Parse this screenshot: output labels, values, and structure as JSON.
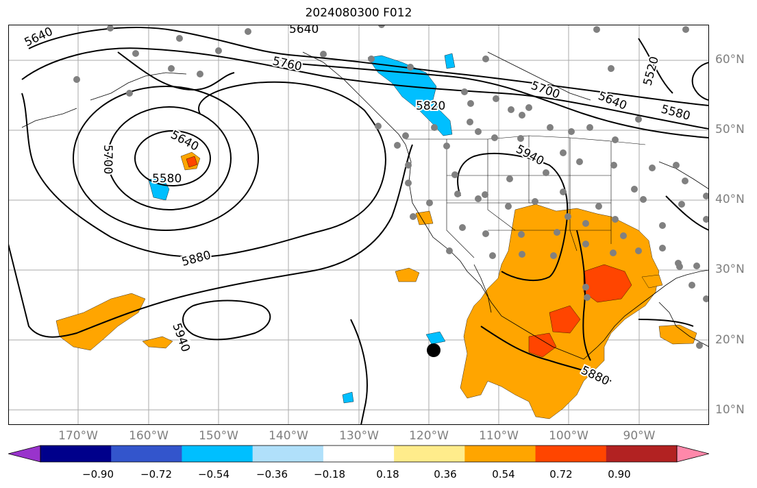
{
  "title": "2024080300 F012",
  "map": {
    "extent": {
      "lon": [
        -180,
        -80
      ],
      "lat": [
        8,
        65
      ]
    },
    "gridlines": true,
    "lat_labels": [
      "60°N",
      "50°N",
      "40°N",
      "30°N",
      "20°N",
      "10°N"
    ],
    "lon_labels": [
      "170°W",
      "160°W",
      "150°W",
      "140°W",
      "130°W",
      "120°W",
      "110°W",
      "100°W",
      "90°W"
    ],
    "contour_labels": [
      "5640",
      "5640",
      "5760",
      "5820",
      "5700",
      "5640",
      "5580",
      "5520",
      "5640",
      "5700",
      "5580",
      "5940",
      "5880",
      "5940",
      "5880"
    ],
    "marker_color": "#808080",
    "typhoon_marker": "black-circle"
  },
  "colorbar": {
    "colors": [
      "#9933cc",
      "#00008b",
      "#3355cc",
      "#00bfff",
      "#b0e0fa",
      "#ffffff",
      "#ffec8b",
      "#ffa500",
      "#ff4500",
      "#b22222",
      "#ff88aa"
    ],
    "tick_labels": [
      "−0.90",
      "−0.72",
      "−0.54",
      "−0.36",
      "−0.18",
      "0.18",
      "0.36",
      "0.54",
      "0.72",
      "0.90"
    ],
    "extend": "both"
  }
}
